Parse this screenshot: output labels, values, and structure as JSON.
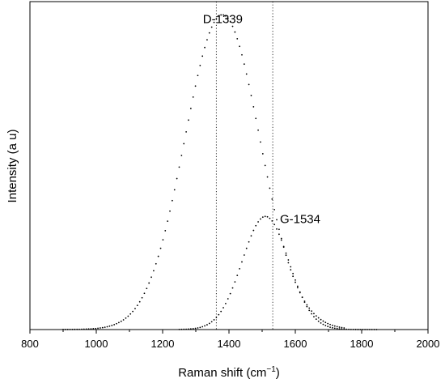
{
  "chart_data": {
    "type": "scatter",
    "title": "",
    "xlabel": "Raman shift (cm",
    "xlabel_sup": "−1",
    "xlabel_tail": ")",
    "ylabel": "Intensity (a u)",
    "xlim": [
      800,
      2000
    ],
    "ylim": [
      0,
      1
    ],
    "xticks": [
      "800",
      "1000",
      "1200",
      "1400",
      "1600",
      "1800",
      "2000"
    ],
    "grid": false,
    "y_tick_labels_shown": false,
    "series": [
      {
        "center": 1380,
        "sigma": 113,
        "amplitude": 0.96,
        "x_min": 900,
        "x_max": 1750,
        "step": 7
      },
      {
        "center": 1510,
        "sigma": 70,
        "amplitude": 0.345,
        "x_min": 1250,
        "x_max": 1850,
        "step": 7
      }
    ],
    "reference_lines": [
      {
        "x": 1362,
        "style": "dotted"
      },
      {
        "x": 1532,
        "style": "dotted"
      }
    ],
    "annotations": [
      {
        "text": "D-1339",
        "x": 1339,
        "y": 0.935
      },
      {
        "text": "G-1534",
        "x": 1534,
        "y": 0.325
      }
    ],
    "colors": {
      "points": "#000000",
      "axes": "#000000"
    }
  }
}
